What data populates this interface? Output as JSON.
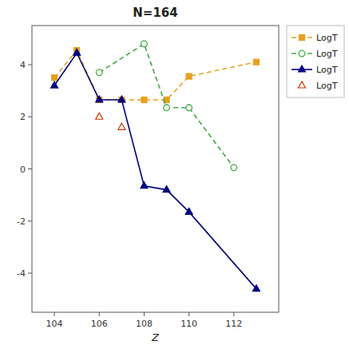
{
  "chart_data": {
    "type": "line",
    "title": "N=164",
    "x_label": "Z",
    "xlim": [
      103.0,
      114.0
    ],
    "ylim": [
      -5.5,
      5.5
    ],
    "xticks": [
      104,
      106,
      108,
      110,
      112
    ],
    "yticks": [
      -4,
      -2,
      0,
      2,
      4
    ],
    "grid": false,
    "legend": "upper right",
    "series": [
      {
        "name": "LogT",
        "color": "#E8A020",
        "line_style": "dashed",
        "marker": "square",
        "x": [
          104,
          105,
          106,
          107,
          108,
          109,
          110,
          113
        ],
        "values": [
          3.5,
          4.55,
          2.65,
          2.65,
          2.65,
          2.65,
          3.55,
          4.1
        ]
      },
      {
        "name": "LogT",
        "color": "#40AA40",
        "line_style": "dashed",
        "marker": "open-circle",
        "x": [
          106,
          108,
          109,
          110,
          112
        ],
        "values": [
          3.7,
          4.8,
          2.35,
          2.35,
          0.05
        ]
      },
      {
        "name": "LogT",
        "color": "#000080",
        "line_style": "solid",
        "marker": "triangle",
        "x": [
          104,
          105,
          106,
          107,
          108,
          109,
          110,
          113
        ],
        "values": [
          3.2,
          4.45,
          2.65,
          2.65,
          -0.65,
          -0.8,
          -1.65,
          -4.6
        ]
      },
      {
        "name": "LogT",
        "color": "#CC3300",
        "line_style": "none",
        "marker": "open-triangle",
        "x": [
          106,
          107
        ],
        "values": [
          2.0,
          1.6
        ]
      }
    ]
  }
}
